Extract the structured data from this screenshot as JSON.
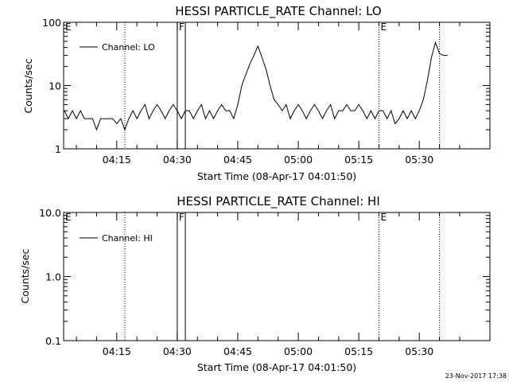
{
  "footer_timestamp": "23-Nov-2017 17:38",
  "chart_data": [
    {
      "type": "line",
      "title": "HESSI PARTICLE_RATE Channel: LO",
      "xlabel": "Start Time (08-Apr-17 04:01:50)",
      "ylabel": "Counts/sec",
      "yscale": "log",
      "ylim": [
        1,
        100
      ],
      "y_tick_labels": [
        "1",
        "10",
        "100"
      ],
      "x_tick_labels": [
        "04:15",
        "04:30",
        "04:45",
        "05:00",
        "05:15",
        "05:30"
      ],
      "xlim_minutes_after_0400": [
        1.83,
        107.5
      ],
      "legend": {
        "position": "top-left",
        "entries": [
          "Channel: LO"
        ]
      },
      "markers": [
        {
          "label": "E",
          "time": "04:01:50",
          "style": "dotted"
        },
        {
          "label": "",
          "time": "04:17",
          "style": "dotted"
        },
        {
          "label": "F",
          "time": "04:30",
          "style": "solid"
        },
        {
          "label": "",
          "time": "04:32",
          "style": "solid"
        },
        {
          "label": "E",
          "time": "05:20",
          "style": "dotted"
        },
        {
          "label": "",
          "time": "05:35",
          "style": "dotted"
        }
      ],
      "series": [
        {
          "name": "Channel: LO",
          "x": [
            "04:02",
            "04:03",
            "04:04",
            "04:05",
            "04:06",
            "04:07",
            "04:08",
            "04:09",
            "04:10",
            "04:11",
            "04:12",
            "04:13",
            "04:14",
            "04:15",
            "04:16",
            "04:17",
            "04:18",
            "04:19",
            "04:20",
            "04:21",
            "04:22",
            "04:23",
            "04:24",
            "04:25",
            "04:26",
            "04:27",
            "04:28",
            "04:29",
            "04:30",
            "04:31",
            "04:32",
            "04:33",
            "04:34",
            "04:35",
            "04:36",
            "04:37",
            "04:38",
            "04:39",
            "04:40",
            "04:41",
            "04:42",
            "04:43",
            "04:44",
            "04:45",
            "04:46",
            "04:47",
            "04:48",
            "04:49",
            "04:50",
            "04:51",
            "04:52",
            "04:53",
            "04:54",
            "04:55",
            "04:56",
            "04:57",
            "04:58",
            "04:59",
            "05:00",
            "05:01",
            "05:02",
            "05:03",
            "05:04",
            "05:05",
            "05:06",
            "05:07",
            "05:08",
            "05:09",
            "05:10",
            "05:11",
            "05:12",
            "05:13",
            "05:14",
            "05:15",
            "05:16",
            "05:17",
            "05:18",
            "05:19",
            "05:20",
            "05:21",
            "05:22",
            "05:23",
            "05:24",
            "05:25",
            "05:26",
            "05:27",
            "05:28",
            "05:29",
            "05:30",
            "05:31",
            "05:32",
            "05:33",
            "05:34",
            "05:35",
            "05:36",
            "05:37"
          ],
          "y": [
            4,
            3,
            4,
            3,
            4,
            3,
            3,
            3,
            2,
            3,
            3,
            3,
            3,
            2.5,
            3,
            2,
            3,
            4,
            3,
            4,
            5,
            3,
            4,
            5,
            4,
            3,
            4,
            5,
            4,
            3,
            4,
            4,
            3,
            4,
            5,
            3,
            4,
            3,
            4,
            5,
            4,
            4,
            3,
            5,
            10,
            15,
            22,
            30,
            42,
            28,
            18,
            10,
            6,
            5,
            4,
            5,
            3,
            4,
            5,
            4,
            3,
            4,
            5,
            4,
            3,
            4,
            5,
            3,
            4,
            4,
            5,
            4,
            4,
            5,
            4,
            3,
            4,
            3,
            4,
            4,
            3,
            4,
            2.5,
            3,
            4,
            3,
            4,
            3,
            4,
            6,
            12,
            28,
            48,
            32,
            30,
            30
          ]
        }
      ]
    },
    {
      "type": "line",
      "title": "HESSI PARTICLE_RATE Channel: HI",
      "xlabel": "Start Time (08-Apr-17 04:01:50)",
      "ylabel": "Counts/sec",
      "yscale": "log",
      "ylim": [
        0.1,
        10
      ],
      "y_tick_labels": [
        "0.1",
        "1.0",
        "10.0"
      ],
      "x_tick_labels": [
        "04:15",
        "04:30",
        "04:45",
        "05:00",
        "05:15",
        "05:30"
      ],
      "xlim_minutes_after_0400": [
        1.83,
        107.5
      ],
      "legend": {
        "position": "top-left",
        "entries": [
          "Channel: HI"
        ]
      },
      "markers": [
        {
          "label": "E",
          "time": "04:01:50",
          "style": "dotted"
        },
        {
          "label": "",
          "time": "04:17",
          "style": "dotted"
        },
        {
          "label": "F",
          "time": "04:30",
          "style": "solid"
        },
        {
          "label": "",
          "time": "04:32",
          "style": "solid"
        },
        {
          "label": "E",
          "time": "05:20",
          "style": "dotted"
        },
        {
          "label": "",
          "time": "05:35",
          "style": "dotted"
        }
      ],
      "series": [
        {
          "name": "Channel: HI",
          "x": [],
          "y": []
        }
      ]
    }
  ]
}
